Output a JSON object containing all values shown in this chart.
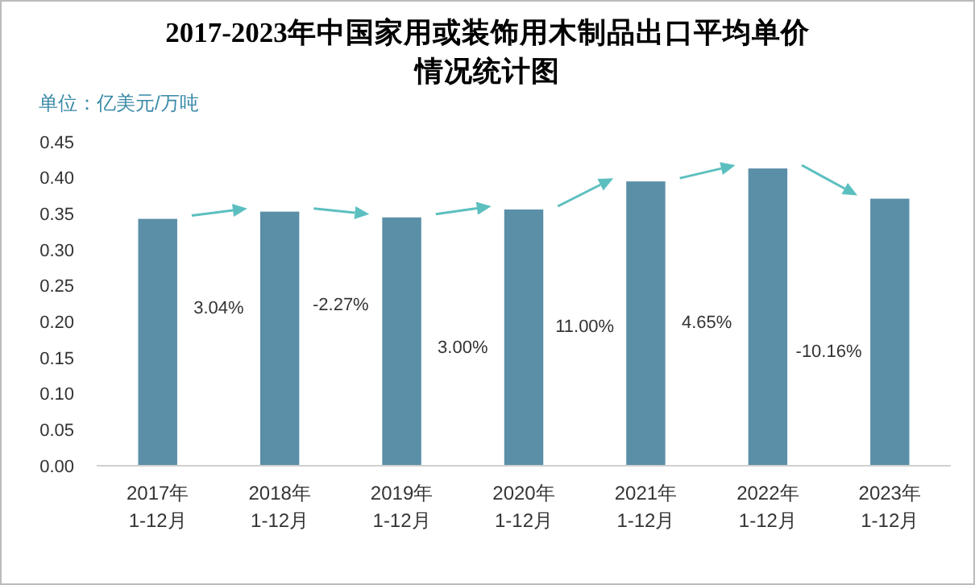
{
  "chart_data": {
    "type": "bar",
    "title": "2017-2023年中国家用或装饰用木制品出口平均单价情况统计图",
    "ylabel": "单位：亿美元/万吨",
    "categories": [
      "2017年\n1-12月",
      "2018年\n1-12月",
      "2019年\n1-12月",
      "2020年\n1-12月",
      "2021年\n1-12月",
      "2022年\n1-12月",
      "2023年\n1-12月"
    ],
    "values": [
      0.343,
      0.353,
      0.345,
      0.356,
      0.395,
      0.413,
      0.371
    ],
    "color": "#5b8fa8",
    "ylim": [
      0,
      0.45
    ],
    "yticks": [
      {
        "value": 0,
        "label": "0.00"
      },
      {
        "value": 0.05,
        "label": "0.05"
      },
      {
        "value": 0.1,
        "label": "0.10"
      },
      {
        "value": 0.15,
        "label": "0.15"
      },
      {
        "value": 0.2,
        "label": "0.20"
      },
      {
        "value": 0.25,
        "label": "0.25"
      },
      {
        "value": 0.3,
        "label": "0.30"
      },
      {
        "value": 0.35,
        "label": "0.35"
      },
      {
        "value": 0.4,
        "label": "0.40"
      },
      {
        "value": 0.45,
        "label": "0.45"
      }
    ],
    "grid": false,
    "annotations": [
      "3.04%",
      "-2.27%",
      "3.00%",
      "11.00%",
      "4.65%",
      "-10.16%"
    ]
  }
}
